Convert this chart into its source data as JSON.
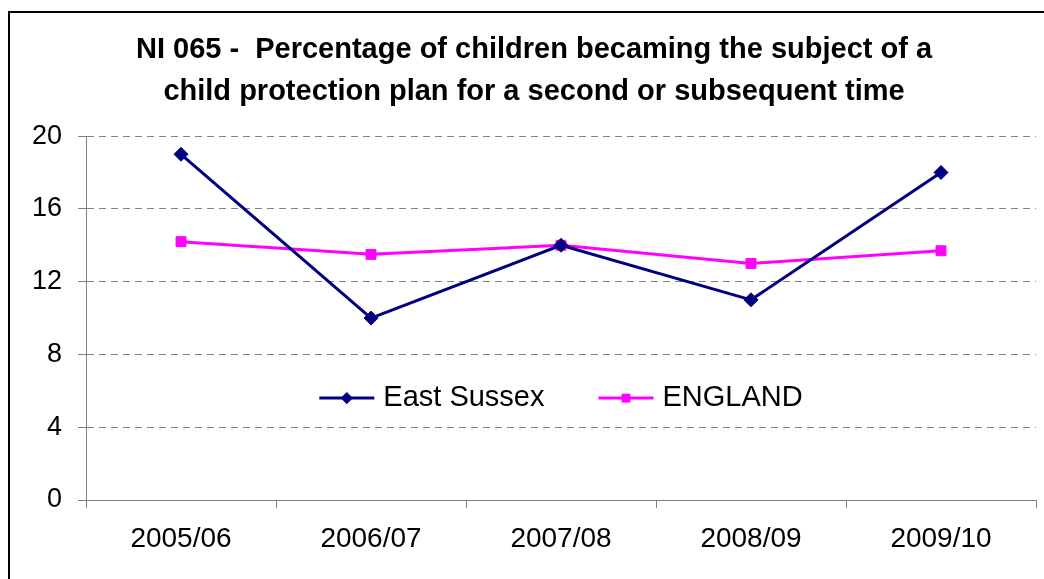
{
  "chart_data": {
    "type": "line",
    "title": "NI 065 -  Percentage of children becaming the subject of a child protection plan for a second or subsequent time",
    "categories": [
      "2005/06",
      "2006/07",
      "2007/08",
      "2008/09",
      "2009/10"
    ],
    "series": [
      {
        "name": "East Sussex",
        "color": "#000080",
        "marker": "diamond",
        "values": [
          19,
          10,
          14,
          11,
          18
        ]
      },
      {
        "name": "ENGLAND",
        "color": "#ff00ff",
        "marker": "square",
        "values": [
          14.2,
          13.5,
          14.0,
          13.0,
          13.7
        ]
      }
    ],
    "ylim": [
      0,
      20
    ],
    "yticks": [
      0,
      4,
      8,
      12,
      16,
      20
    ],
    "grid": "y",
    "legend": "bottom",
    "line_style": "solid"
  }
}
